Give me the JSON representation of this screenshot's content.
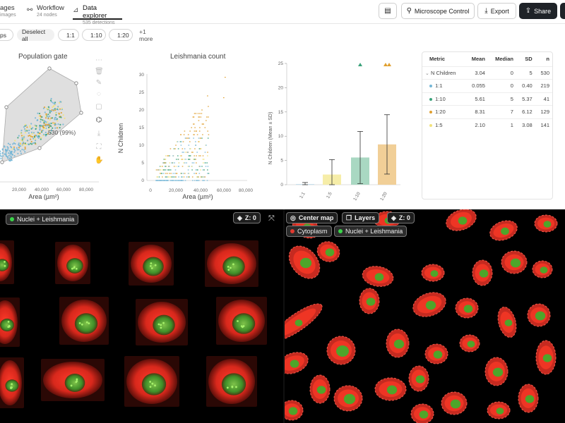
{
  "header": {
    "tabs": [
      {
        "name": "images",
        "label": "ages",
        "sub": "images",
        "icon": "images-icon"
      },
      {
        "name": "workflow",
        "label": "Workflow",
        "sub": "24 nodes",
        "icon": "workflow-icon"
      },
      {
        "name": "data-explorer",
        "label": "Data explorer",
        "sub": "535 detections",
        "icon": "chart-icon",
        "active": true
      }
    ],
    "buttons": {
      "comments_icon": "comment-icon",
      "microscope": "Microscope Control",
      "export": "Export",
      "share": "Share"
    }
  },
  "filters": {
    "groups": "ps",
    "deselect_all": "Deselect all",
    "chips": [
      {
        "label": "1:1",
        "color": "#74b6d6"
      },
      {
        "label": "1:10",
        "color": "#3aa27a"
      },
      {
        "label": "1:20",
        "color": "#e0a030"
      }
    ],
    "more": "+1 more"
  },
  "colors": {
    "s1_1": "#74b6d6",
    "s1_5": "#f2e27a",
    "s1_10": "#3aa27a",
    "s1_20": "#e0a030",
    "bar1_5": "#f6eda8",
    "bar1_10": "#a9d8c2",
    "bar1_20": "#f1cf97"
  },
  "gate_chart": {
    "title": "Population gate",
    "xlabel": "Area (µm²)",
    "xticks": [
      "20,000",
      "40,000",
      "60,000",
      "80,000"
    ],
    "gate_label": "530 (99%)"
  },
  "count_chart": {
    "title": "Leishmania count",
    "ylabel": "N Children",
    "xlabel": "Area (µm²)",
    "yticks": [
      "0",
      "5",
      "10",
      "15",
      "20",
      "25",
      "30"
    ],
    "xticks": [
      "0",
      "20,000",
      "40,000",
      "60,000",
      "80,000"
    ]
  },
  "chart_data": {
    "type": "bar",
    "ylabel": "N Children (Mean ± SD)",
    "categories": [
      "1:1",
      "1:5",
      "1:10",
      "1:20"
    ],
    "values": [
      0.055,
      2.1,
      5.61,
      8.31
    ],
    "sd": [
      0.4,
      3.08,
      5.37,
      6.12
    ],
    "ylim": [
      0,
      25
    ],
    "yticks": [
      "0",
      "5",
      "10",
      "15",
      "20",
      "25"
    ]
  },
  "stats": {
    "headers": [
      "Metric",
      "Mean",
      "Median",
      "SD",
      "n"
    ],
    "rows": [
      {
        "metric": "N Children",
        "mean": "3.04",
        "median": "0",
        "sd": "5",
        "n": "530",
        "group": true
      },
      {
        "metric": "1:1",
        "mean": "0.055",
        "median": "0",
        "sd": "0.40",
        "n": "219",
        "color": "#74b6d6"
      },
      {
        "metric": "1:10",
        "mean": "5.61",
        "median": "5",
        "sd": "5.37",
        "n": "41",
        "color": "#3aa27a"
      },
      {
        "metric": "1:20",
        "mean": "8.31",
        "median": "7",
        "sd": "6.12",
        "n": "129",
        "color": "#e0a030"
      },
      {
        "metric": "1:5",
        "mean": "2.10",
        "median": "1",
        "sd": "3.08",
        "n": "141",
        "color": "#f2e27a"
      }
    ]
  },
  "viewer_left": {
    "z_label": "Z: 0",
    "channel": "Nuclei + Leishmania"
  },
  "viewer_right": {
    "center_map": "Center map",
    "layers": "Layers",
    "z_label": "Z: 0",
    "channels": [
      "Cytoplasm",
      "Nuclei + Leishmania"
    ]
  }
}
